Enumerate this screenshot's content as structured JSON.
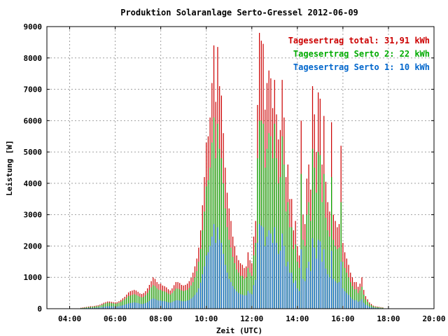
{
  "chart_data": {
    "type": "bar",
    "title": "Produktion Solaranlage Serto-Gressel 2012-06-09",
    "xlabel": "Zeit (UTC)",
    "ylabel": "Leistung [W]",
    "ylim": [
      0,
      9000
    ],
    "xlim": [
      "03:00",
      "20:00"
    ],
    "y_ticks": [
      "0",
      "1000",
      "2000",
      "3000",
      "4000",
      "5000",
      "6000",
      "7000",
      "8000",
      "9000"
    ],
    "x_ticks": [
      "04:00",
      "06:00",
      "08:00",
      "10:00",
      "12:00",
      "14:00",
      "16:00",
      "18:00",
      "20:00"
    ],
    "grid": true,
    "legend_position": "top-right",
    "legend": [
      {
        "label": "Tagesertrag total: 31,91 kWh",
        "color": "#cc0000"
      },
      {
        "label": "Tagesertrag Serto 2: 22 kWh",
        "color": "#00aa00"
      },
      {
        "label": "Tagesertrag Serto 1: 10 kWh",
        "color": "#0066cc"
      }
    ],
    "interval_minutes": 5,
    "times": [
      "04:30",
      "04:35",
      "04:40",
      "04:45",
      "04:50",
      "04:55",
      "05:00",
      "05:05",
      "05:10",
      "05:15",
      "05:20",
      "05:25",
      "05:30",
      "05:35",
      "05:40",
      "05:45",
      "05:50",
      "05:55",
      "06:00",
      "06:05",
      "06:10",
      "06:15",
      "06:20",
      "06:25",
      "06:30",
      "06:35",
      "06:40",
      "06:45",
      "06:50",
      "06:55",
      "07:00",
      "07:05",
      "07:10",
      "07:15",
      "07:20",
      "07:25",
      "07:30",
      "07:35",
      "07:40",
      "07:45",
      "07:50",
      "07:55",
      "08:00",
      "08:05",
      "08:10",
      "08:15",
      "08:20",
      "08:25",
      "08:30",
      "08:35",
      "08:40",
      "08:45",
      "08:50",
      "08:55",
      "09:00",
      "09:05",
      "09:10",
      "09:15",
      "09:20",
      "09:25",
      "09:30",
      "09:35",
      "09:40",
      "09:45",
      "09:50",
      "09:55",
      "10:00",
      "10:05",
      "10:10",
      "10:15",
      "10:20",
      "10:25",
      "10:30",
      "10:35",
      "10:40",
      "10:45",
      "10:50",
      "10:55",
      "11:00",
      "11:05",
      "11:10",
      "11:15",
      "11:20",
      "11:25",
      "11:30",
      "11:35",
      "11:40",
      "11:45",
      "11:50",
      "11:55",
      "12:00",
      "12:05",
      "12:10",
      "12:15",
      "12:20",
      "12:25",
      "12:30",
      "12:35",
      "12:40",
      "12:45",
      "12:50",
      "12:55",
      "13:00",
      "13:05",
      "13:10",
      "13:15",
      "13:20",
      "13:25",
      "13:30",
      "13:35",
      "13:40",
      "13:45",
      "13:50",
      "13:55",
      "14:00",
      "14:05",
      "14:10",
      "14:15",
      "14:20",
      "14:25",
      "14:30",
      "14:35",
      "14:40",
      "14:45",
      "14:50",
      "14:55",
      "15:00",
      "15:05",
      "15:10",
      "15:15",
      "15:20",
      "15:25",
      "15:30",
      "15:35",
      "15:40",
      "15:45",
      "15:50",
      "15:55",
      "16:00",
      "16:05",
      "16:10",
      "16:15",
      "16:20",
      "16:25",
      "16:30",
      "16:35",
      "16:40",
      "16:45",
      "16:50",
      "16:55",
      "17:00",
      "17:05",
      "17:10",
      "17:15",
      "17:20",
      "17:25",
      "17:30",
      "17:35",
      "17:40",
      "17:45",
      "17:50",
      "17:55",
      "18:00"
    ],
    "series": [
      {
        "name": "Tagesertrag total: 31,91 kWh",
        "color": "#cc0000",
        "values": [
          30,
          40,
          50,
          60,
          70,
          80,
          80,
          90,
          100,
          110,
          130,
          160,
          190,
          210,
          230,
          230,
          220,
          210,
          200,
          210,
          240,
          280,
          330,
          380,
          450,
          520,
          560,
          580,
          600,
          580,
          540,
          490,
          470,
          500,
          560,
          650,
          760,
          880,
          1000,
          950,
          850,
          790,
          800,
          740,
          720,
          680,
          620,
          580,
          650,
          750,
          850,
          850,
          820,
          760,
          740,
          760,
          800,
          880,
          990,
          1150,
          1350,
          1600,
          1950,
          2500,
          3300,
          4200,
          5300,
          5500,
          6100,
          7200,
          8400,
          6600,
          8350,
          7100,
          6800,
          5600,
          4500,
          3700,
          3200,
          2800,
          2300,
          2000,
          1700,
          1550,
          1450,
          1400,
          1300,
          1350,
          1800,
          1550,
          1450,
          2300,
          2800,
          6500,
          8800,
          8550,
          8450,
          6350,
          7200,
          7600,
          7350,
          6400,
          7300,
          6200,
          5400,
          5700,
          7300,
          6100,
          4200,
          4600,
          3500,
          3500,
          2500,
          2800,
          2000,
          1700,
          6000,
          3000,
          2700,
          4150,
          4600,
          3800,
          7100,
          6200,
          5000,
          6900,
          6700,
          4600,
          6150,
          4050,
          3400,
          3100,
          5950,
          3000,
          2800,
          2600,
          2700,
          5200,
          2100,
          1800,
          1600,
          1400,
          1150,
          1000,
          850,
          850,
          700,
          800,
          1000,
          600,
          400,
          300,
          200,
          150,
          100,
          80,
          70,
          60,
          50,
          40
        ]
      },
      {
        "name": "Tagesertrag Serto 2: 22 kWh",
        "color": "#00aa00",
        "values": [
          20,
          25,
          35,
          45,
          50,
          55,
          60,
          70,
          75,
          80,
          100,
          120,
          150,
          170,
          190,
          190,
          180,
          170,
          160,
          170,
          190,
          220,
          260,
          300,
          350,
          400,
          420,
          440,
          460,
          440,
          410,
          380,
          360,
          380,
          430,
          500,
          590,
          680,
          750,
          720,
          650,
          600,
          600,
          560,
          550,
          520,
          480,
          450,
          500,
          570,
          640,
          640,
          620,
          580,
          560,
          580,
          600,
          660,
          740,
          850,
          1000,
          1200,
          1500,
          1900,
          2500,
          3100,
          3900,
          4100,
          4500,
          5300,
          6100,
          4800,
          5900,
          5100,
          4800,
          4000,
          3200,
          2600,
          2200,
          1950,
          1650,
          1450,
          1250,
          1150,
          1050,
          1050,
          950,
          1000,
          1300,
          1150,
          1050,
          1700,
          2100,
          4800,
          6000,
          6000,
          5900,
          4500,
          5100,
          5600,
          5500,
          4800,
          5900,
          4800,
          4000,
          4200,
          5500,
          4600,
          3100,
          3400,
          2600,
          2600,
          1900,
          2050,
          1500,
          1300,
          4300,
          2200,
          2000,
          3000,
          3400,
          2800,
          5100,
          4500,
          3700,
          5000,
          4900,
          3400,
          4300,
          2900,
          2500,
          2300,
          4200,
          2200,
          2000,
          1900,
          1950,
          3400,
          1500,
          1300,
          1150,
          1000,
          850,
          720,
          620,
          620,
          500,
          580,
          700,
          450,
          300,
          220,
          150,
          110,
          75,
          60,
          50,
          45,
          35,
          30
        ]
      },
      {
        "name": "Tagesertrag Serto 1: 10 kWh",
        "color": "#0066cc",
        "values": [
          10,
          12,
          15,
          20,
          22,
          25,
          25,
          28,
          30,
          35,
          40,
          50,
          60,
          70,
          80,
          80,
          75,
          70,
          65,
          70,
          80,
          95,
          110,
          130,
          150,
          170,
          180,
          190,
          200,
          190,
          180,
          160,
          150,
          160,
          180,
          210,
          250,
          300,
          330,
          310,
          280,
          260,
          260,
          240,
          240,
          220,
          200,
          190,
          210,
          240,
          270,
          270,
          260,
          240,
          240,
          240,
          260,
          280,
          320,
          370,
          440,
          520,
          650,
          830,
          1100,
          1350,
          1700,
          1800,
          2000,
          2300,
          2700,
          2100,
          2600,
          2200,
          2100,
          1750,
          1400,
          1150,
          950,
          850,
          720,
          630,
          550,
          500,
          460,
          450,
          420,
          430,
          570,
          500,
          460,
          750,
          920,
          2100,
          2700,
          2650,
          2600,
          2000,
          2300,
          2500,
          2400,
          2100,
          2600,
          2100,
          1750,
          1850,
          2400,
          2000,
          1350,
          1500,
          1150,
          1150,
          820,
          900,
          650,
          560,
          1900,
          950,
          880,
          1300,
          1500,
          1200,
          2250,
          1950,
          1600,
          2200,
          2150,
          1500,
          1900,
          1280,
          1100,
          1000,
          1850,
          950,
          880,
          820,
          850,
          1500,
          650,
          560,
          500,
          440,
          370,
          310,
          270,
          270,
          220,
          250,
          300,
          190,
          130,
          100,
          65,
          50,
          35,
          28,
          22,
          20,
          15,
          12
        ]
      }
    ]
  }
}
